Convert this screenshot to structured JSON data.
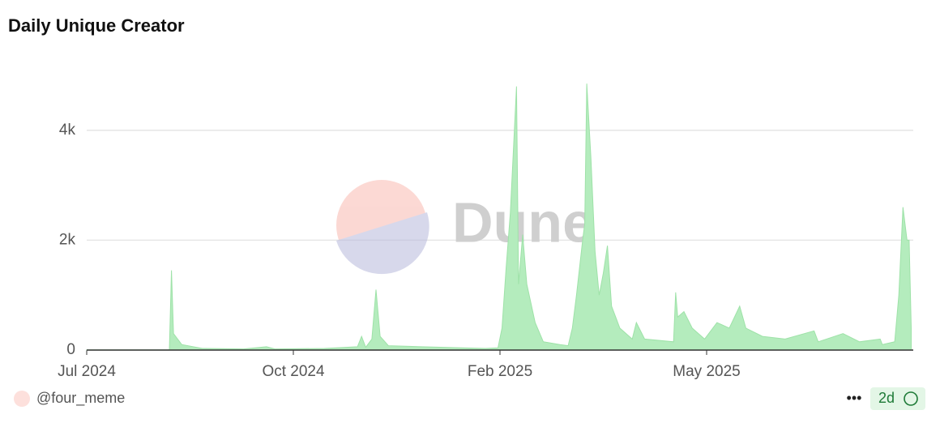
{
  "chart_data": {
    "type": "area",
    "title": "Daily Unique Creator",
    "watermark": "Dune",
    "author": "@four_meme",
    "refresh": "2d",
    "color": "#b4ecbd",
    "line_color": "#9ee2a8",
    "grid": true,
    "xlim": [
      0,
      400
    ],
    "xticks": [
      {
        "value": 0,
        "label": "Jul 2024"
      },
      {
        "value": 100,
        "label": "Oct 2024"
      },
      {
        "value": 200,
        "label": "Feb 2025"
      },
      {
        "value": 300,
        "label": "May 2025"
      }
    ],
    "ylim": [
      0,
      5000
    ],
    "yticks": [
      {
        "value": 0,
        "label": "0"
      },
      {
        "value": 2000,
        "label": "2k"
      },
      {
        "value": 4000,
        "label": "4k"
      }
    ],
    "x": [
      0,
      17,
      40,
      41,
      42,
      46,
      56,
      76,
      87,
      91,
      115,
      131,
      133,
      135,
      138,
      140,
      142,
      146,
      162,
      193,
      199,
      201,
      203,
      205,
      208,
      209,
      211,
      213,
      217,
      221,
      229,
      233,
      235,
      237,
      240,
      241,
      242,
      244,
      246,
      248,
      250,
      252,
      254,
      258,
      264,
      266,
      270,
      284,
      285,
      286,
      289,
      293,
      299,
      305,
      311,
      316,
      319,
      327,
      338,
      352,
      354,
      366,
      374,
      384,
      385,
      391,
      393,
      395,
      397,
      398,
      399
    ],
    "series": [
      {
        "name": "Daily Unique Creator",
        "values": [
          5,
          5,
          5,
          1450,
          300,
          100,
          30,
          20,
          60,
          20,
          30,
          60,
          250,
          50,
          200,
          1100,
          250,
          80,
          60,
          30,
          40,
          400,
          1500,
          2500,
          4800,
          1200,
          2100,
          1200,
          500,
          150,
          100,
          80,
          400,
          1000,
          2000,
          2300,
          4850,
          3500,
          1800,
          1000,
          1400,
          1900,
          800,
          400,
          200,
          500,
          200,
          150,
          1050,
          600,
          700,
          400,
          200,
          500,
          400,
          800,
          400,
          250,
          200,
          350,
          150,
          300,
          150,
          200,
          100,
          150,
          1000,
          2600,
          2000,
          2000,
          400
        ]
      }
    ]
  }
}
